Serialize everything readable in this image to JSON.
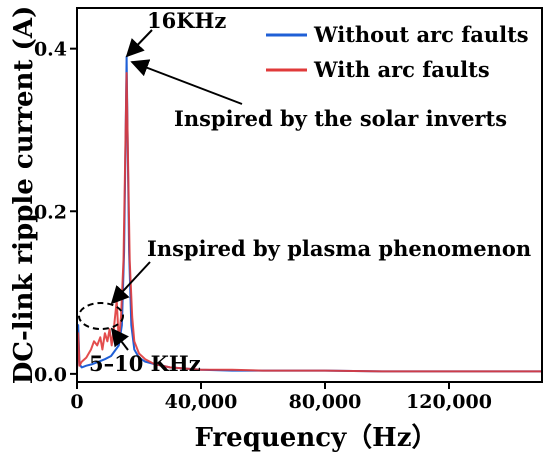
{
  "chart_data": {
    "type": "line",
    "xlabel": "Frequency（Hz）",
    "ylabel": "DC-link ripple current (A)",
    "xlim": [
      0,
      150000
    ],
    "ylim": [
      -0.01,
      0.45
    ],
    "x_ticks": [
      0,
      40000,
      80000,
      120000
    ],
    "x_tick_labels": [
      "0",
      "40,000",
      "80,000",
      "120,000"
    ],
    "y_ticks": [
      0.0,
      0.2,
      0.4
    ],
    "y_tick_labels": [
      "0.0",
      "0.2",
      "0.4"
    ],
    "grid": false,
    "legend_position": "top-right",
    "series": [
      {
        "name": "Without arc faults",
        "color": "#1f5fd6",
        "x": [
          0,
          400,
          800,
          1500,
          3000,
          5000,
          7000,
          9000,
          11000,
          12500,
          13500,
          14500,
          15200,
          15700,
          16000,
          16300,
          16800,
          17500,
          18500,
          20000,
          22000,
          25000,
          30000,
          40000,
          50000,
          60000,
          80000,
          100000,
          120000,
          150000
        ],
        "y": [
          0.005,
          0.06,
          0.012,
          0.008,
          0.01,
          0.012,
          0.015,
          0.018,
          0.022,
          0.03,
          0.035,
          0.06,
          0.15,
          0.3,
          0.39,
          0.3,
          0.15,
          0.06,
          0.03,
          0.02,
          0.015,
          0.012,
          0.008,
          0.005,
          0.004,
          0.004,
          0.004,
          0.003,
          0.003,
          0.003
        ]
      },
      {
        "name": "With arc faults",
        "color": "#e03a3a",
        "x": [
          0,
          400,
          800,
          1500,
          3000,
          4500,
          5500,
          6500,
          7500,
          8200,
          9000,
          9800,
          10500,
          11200,
          12000,
          12800,
          13500,
          14200,
          15000,
          15600,
          16000,
          16400,
          17000,
          17800,
          18500,
          20000,
          22000,
          25000,
          30000,
          40000,
          50000,
          60000,
          80000,
          100000,
          120000,
          150000
        ],
        "y": [
          0.005,
          0.05,
          0.01,
          0.015,
          0.02,
          0.03,
          0.04,
          0.035,
          0.045,
          0.03,
          0.05,
          0.04,
          0.055,
          0.035,
          0.06,
          0.09,
          0.04,
          0.07,
          0.14,
          0.28,
          0.37,
          0.28,
          0.14,
          0.07,
          0.04,
          0.025,
          0.018,
          0.012,
          0.008,
          0.005,
          0.005,
          0.004,
          0.004,
          0.003,
          0.003,
          0.003
        ]
      }
    ],
    "annotations": [
      {
        "text": "16KHz",
        "target_x": 16000,
        "target_y": 0.38
      },
      {
        "text": "Inspired by the solar inverts",
        "target_x": 16000,
        "target_y": 0.38
      },
      {
        "text": "Inspired by plasma phenomenon",
        "target_x": 12000,
        "target_y": 0.045
      },
      {
        "text": "5–10 KHz",
        "target_x": 11000,
        "target_y": 0.03
      }
    ]
  }
}
